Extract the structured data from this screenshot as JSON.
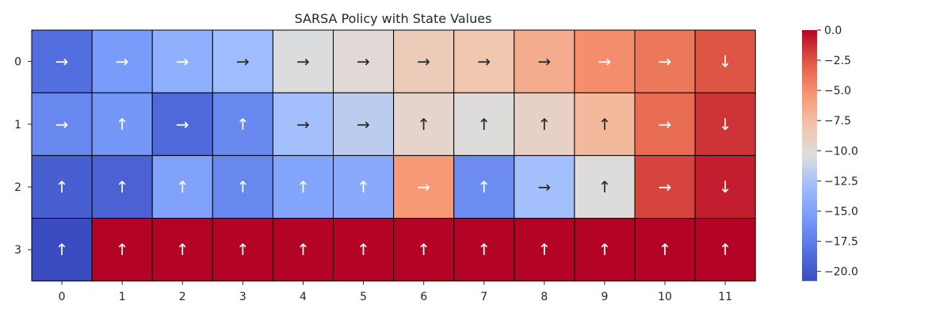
{
  "chart_data": {
    "type": "heatmap",
    "title": "SARSA Policy with State Values",
    "xlabel": "",
    "ylabel": "",
    "x_tick_labels": [
      "0",
      "1",
      "2",
      "3",
      "4",
      "5",
      "6",
      "7",
      "8",
      "9",
      "10",
      "11"
    ],
    "y_tick_labels": [
      "0",
      "1",
      "2",
      "3"
    ],
    "values": [
      [
        -18.5,
        -15.5,
        -14.0,
        -13.0,
        -10.5,
        -10.0,
        -8.5,
        -8.0,
        -6.5,
        -5.0,
        -4.0,
        -2.5
      ],
      [
        -16.8,
        -15.8,
        -18.8,
        -16.8,
        -12.8,
        -11.8,
        -9.5,
        -10.3,
        -9.2,
        -7.2,
        -3.5,
        -1.5
      ],
      [
        -19.5,
        -19.3,
        -15.0,
        -16.8,
        -14.8,
        -14.5,
        -5.5,
        -16.5,
        -12.8,
        -10.3,
        -2.0,
        -0.8
      ],
      [
        -20.8,
        0.0,
        0.0,
        0.0,
        0.0,
        0.0,
        0.0,
        0.0,
        0.0,
        0.0,
        0.0,
        0.0
      ]
    ],
    "arrows": [
      [
        "→",
        "→",
        "→",
        "→",
        "→",
        "→",
        "→",
        "→",
        "→",
        "→",
        "→",
        "↓"
      ],
      [
        "→",
        "↑",
        "→",
        "↑",
        "→",
        "→",
        "↑",
        "↑",
        "↑",
        "↑",
        "→",
        "↓"
      ],
      [
        "↑",
        "↑",
        "↑",
        "↑",
        "↑",
        "↑",
        "→",
        "↑",
        "→",
        "↑",
        "→",
        "↓"
      ],
      [
        "↑",
        "↑",
        "↑",
        "↑",
        "↑",
        "↑",
        "↑",
        "↑",
        "↑",
        "↑",
        "↑",
        "↑"
      ]
    ],
    "colormap": "coolwarm",
    "vmin": -20.8,
    "vmax": 0.0,
    "colorbar_ticks": [
      0.0,
      -2.5,
      -5.0,
      -7.5,
      -10.0,
      -12.5,
      -15.0,
      -17.5,
      -20.0
    ],
    "colorbar_tick_labels": [
      "0.0",
      "−2.5",
      "−5.0",
      "−7.5",
      "−10.0",
      "−12.5",
      "−15.0",
      "−17.5",
      "−20.0"
    ],
    "cell_border_color": "#000000",
    "light_text_color": "#ffffff",
    "dark_text_color": "#262626"
  }
}
